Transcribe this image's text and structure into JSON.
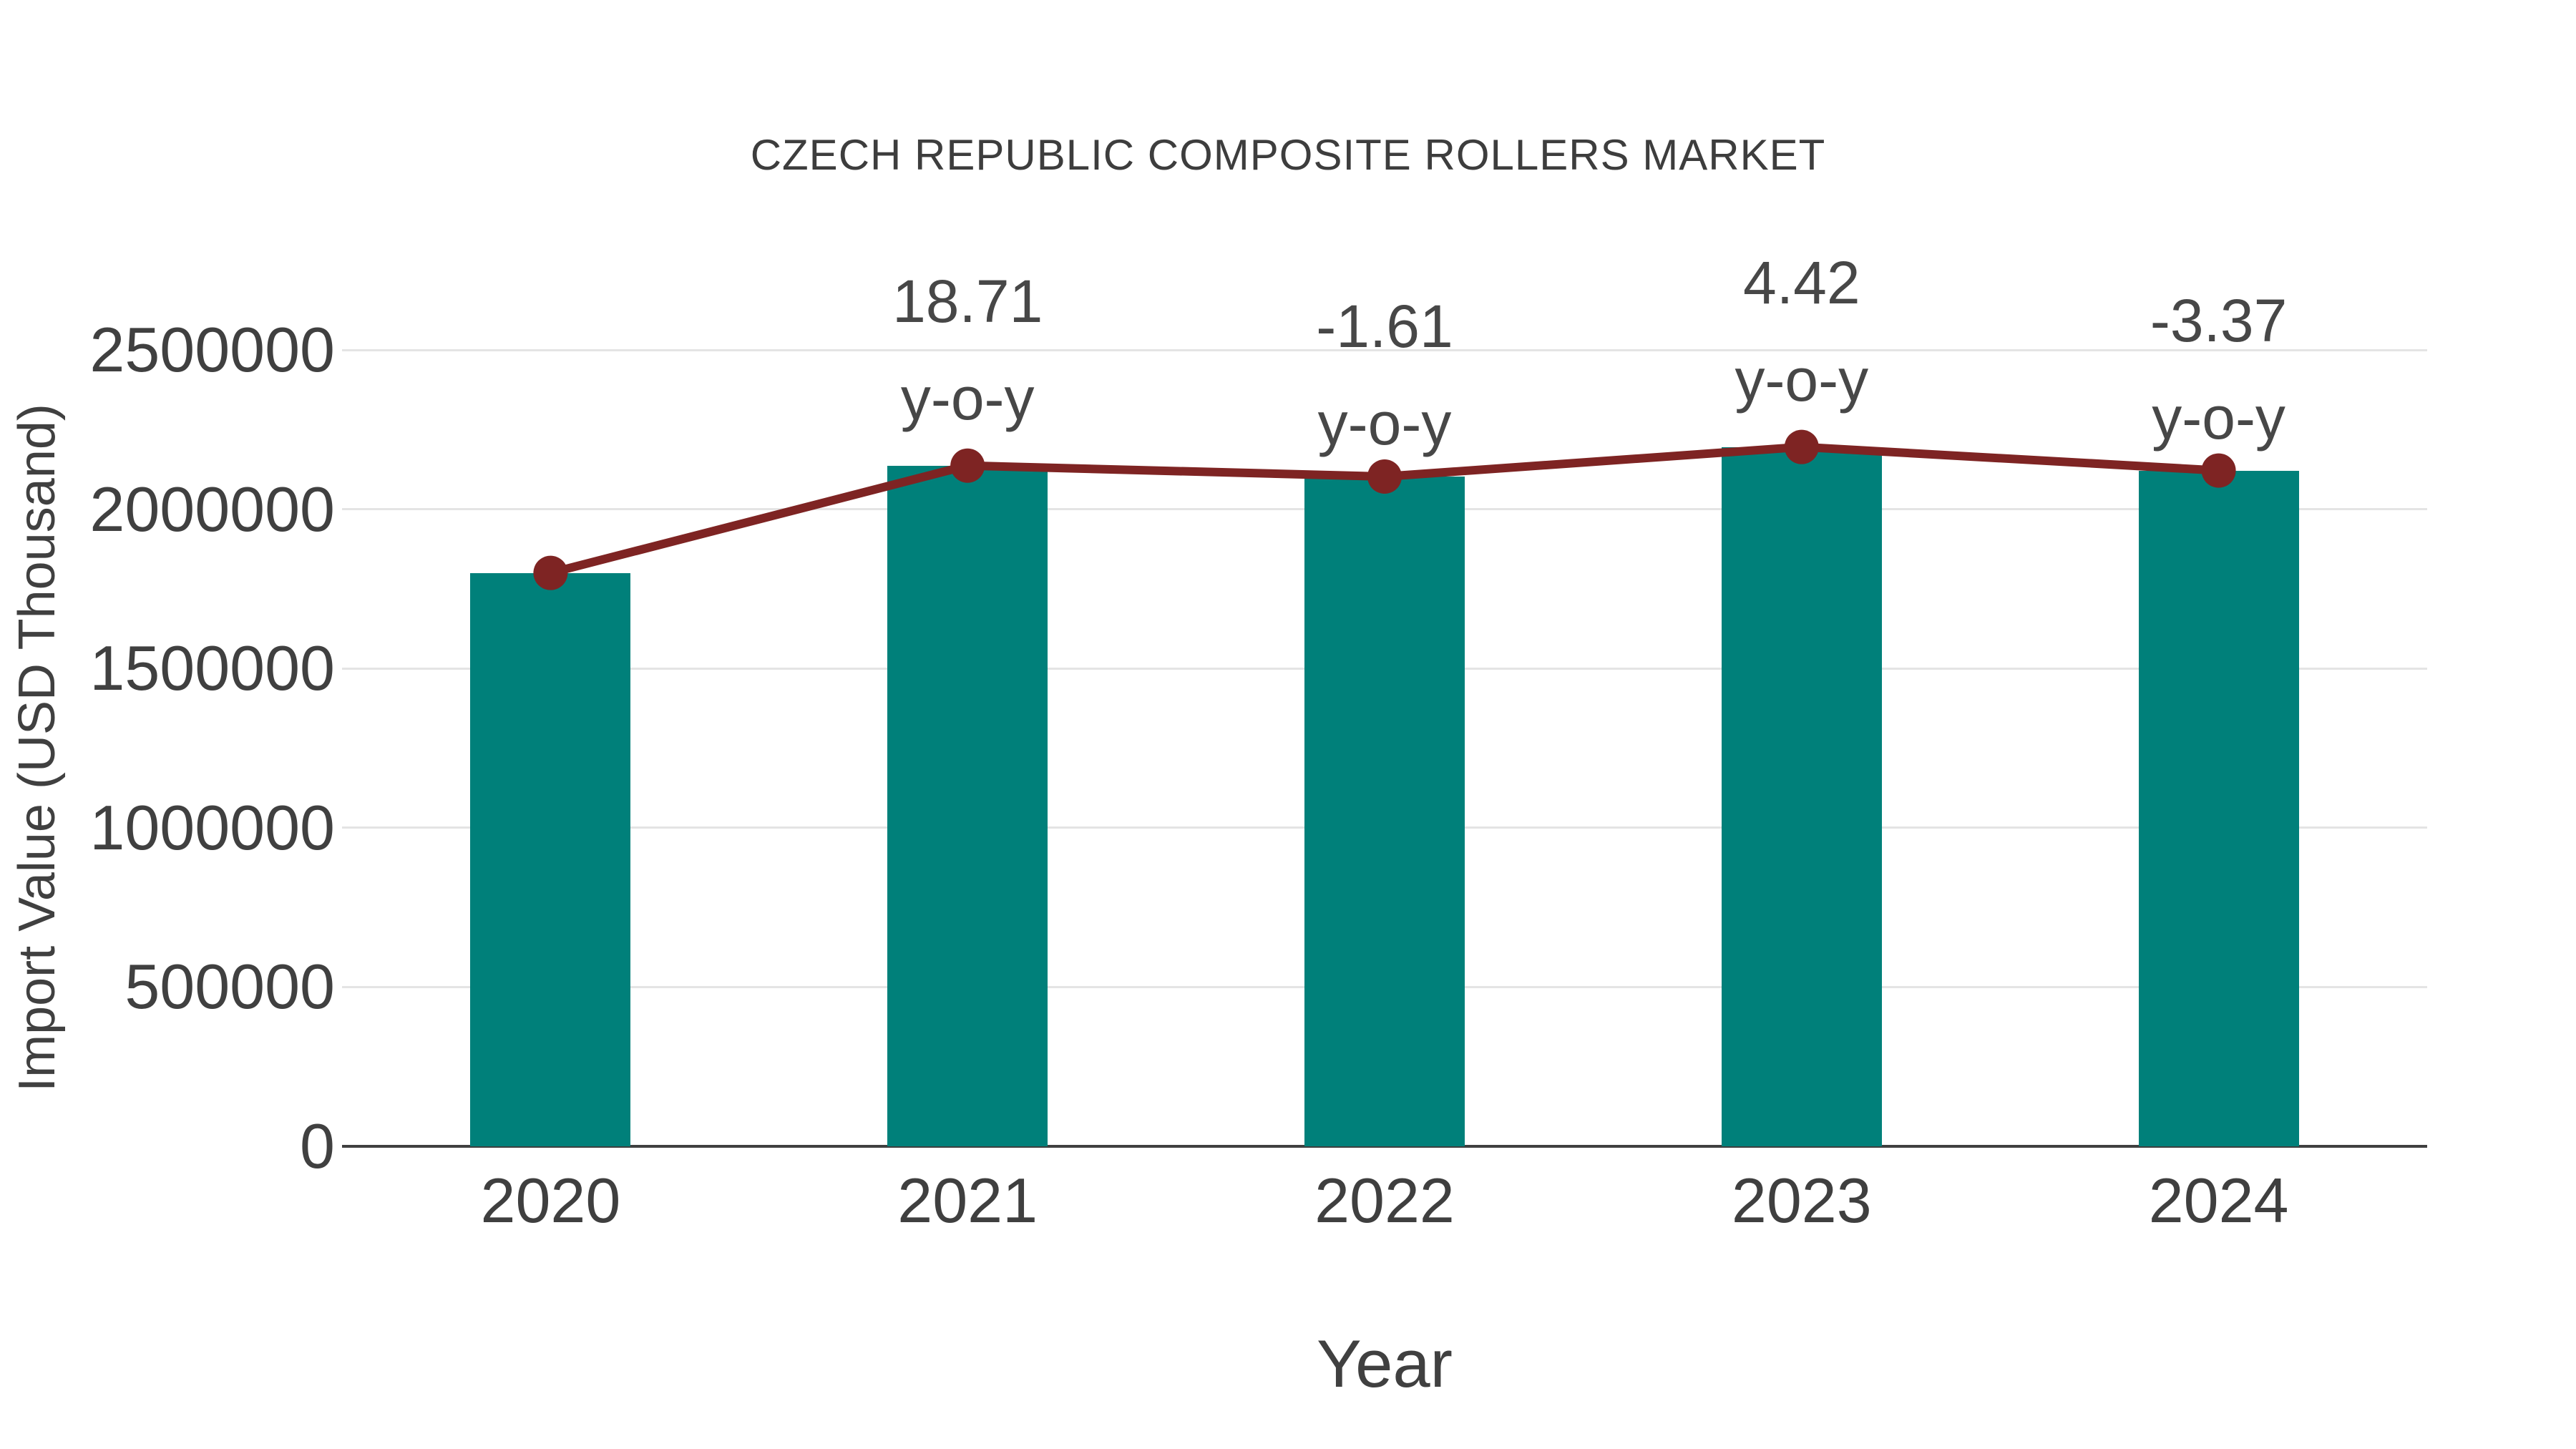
{
  "title": "CZECH REPUBLIC COMPOSITE ROLLERS MARKET",
  "axes": {
    "x_label": "Year",
    "y_label": "Import Value (USD Thousand)"
  },
  "chart_data": {
    "type": "bar",
    "title": "CZECH REPUBLIC COMPOSITE ROLLERS MARKET",
    "xlabel": "Year",
    "ylabel": "Import Value (USD Thousand)",
    "categories": [
      "2020",
      "2021",
      "2022",
      "2023",
      "2024"
    ],
    "series": [
      {
        "name": "Import Value (USD Thousand)",
        "type": "bar",
        "values": [
          1800000,
          2136800,
          2102400,
          2195300,
          2121300
        ]
      },
      {
        "name": "Import Value trend",
        "type": "line",
        "values": [
          1800000,
          2136800,
          2102400,
          2195300,
          2121300
        ]
      }
    ],
    "annotations": [
      {
        "category": "2021",
        "value": "18.71",
        "suffix": "y-o-y"
      },
      {
        "category": "2022",
        "value": "-1.61",
        "suffix": "y-o-y"
      },
      {
        "category": "2023",
        "value": "4.42",
        "suffix": "y-o-y"
      },
      {
        "category": "2024",
        "value": "-3.37",
        "suffix": "y-o-y"
      }
    ],
    "ylim": [
      0,
      2500000
    ],
    "yticks": [
      0,
      500000,
      1000000,
      1500000,
      2000000,
      2500000
    ],
    "grid": true,
    "legend": false
  },
  "colors": {
    "bar": "#00807a",
    "line": "#7e2423",
    "marker": "#7e2423",
    "grid": "#e4e4e4",
    "axis": "#3f3f3f",
    "text": "#404040",
    "title_text": "#3d3d3d"
  }
}
